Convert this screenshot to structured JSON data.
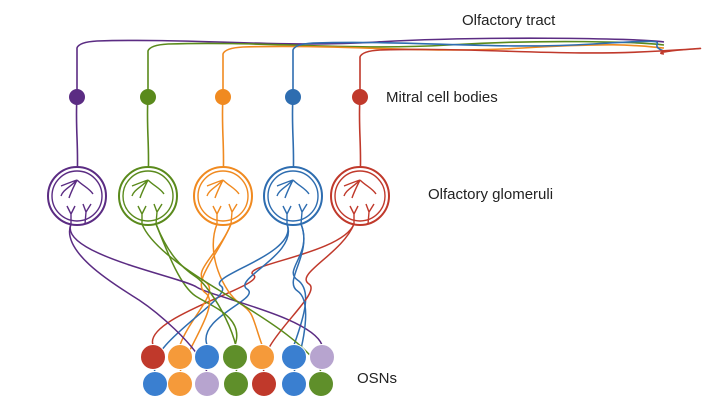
{
  "labels": {
    "tract": "Olfactory tract",
    "mitral": "Mitral cell bodies",
    "glomeruli": "Olfactory glomeruli",
    "osns": "OSNs"
  },
  "channels": [
    {
      "id": "purple",
      "color": "#5b2c83",
      "glomerulus_fill": "#ffffff"
    },
    {
      "id": "green",
      "color": "#5a8a1c",
      "glomerulus_fill": "#ffffff"
    },
    {
      "id": "orange",
      "color": "#f08a20",
      "glomerulus_fill": "#ffffff"
    },
    {
      "id": "blue",
      "color": "#2e6db0",
      "glomerulus_fill": "#ffffff"
    },
    {
      "id": "red",
      "color": "#c0392b",
      "glomerulus_fill": "#ffffff"
    }
  ],
  "osn_fills": {
    "purple": "#b7a4cf",
    "green": "#5f8f2a",
    "orange": "#f59a3a",
    "blue": "#3a7fd0",
    "red": "#c0392b"
  },
  "osn_rows": [
    [
      "red",
      "orange",
      "blue",
      "green",
      "orange",
      "blue",
      "purple"
    ],
    [
      "blue",
      "orange",
      "purple",
      "green",
      "red",
      "blue",
      "green"
    ]
  ]
}
